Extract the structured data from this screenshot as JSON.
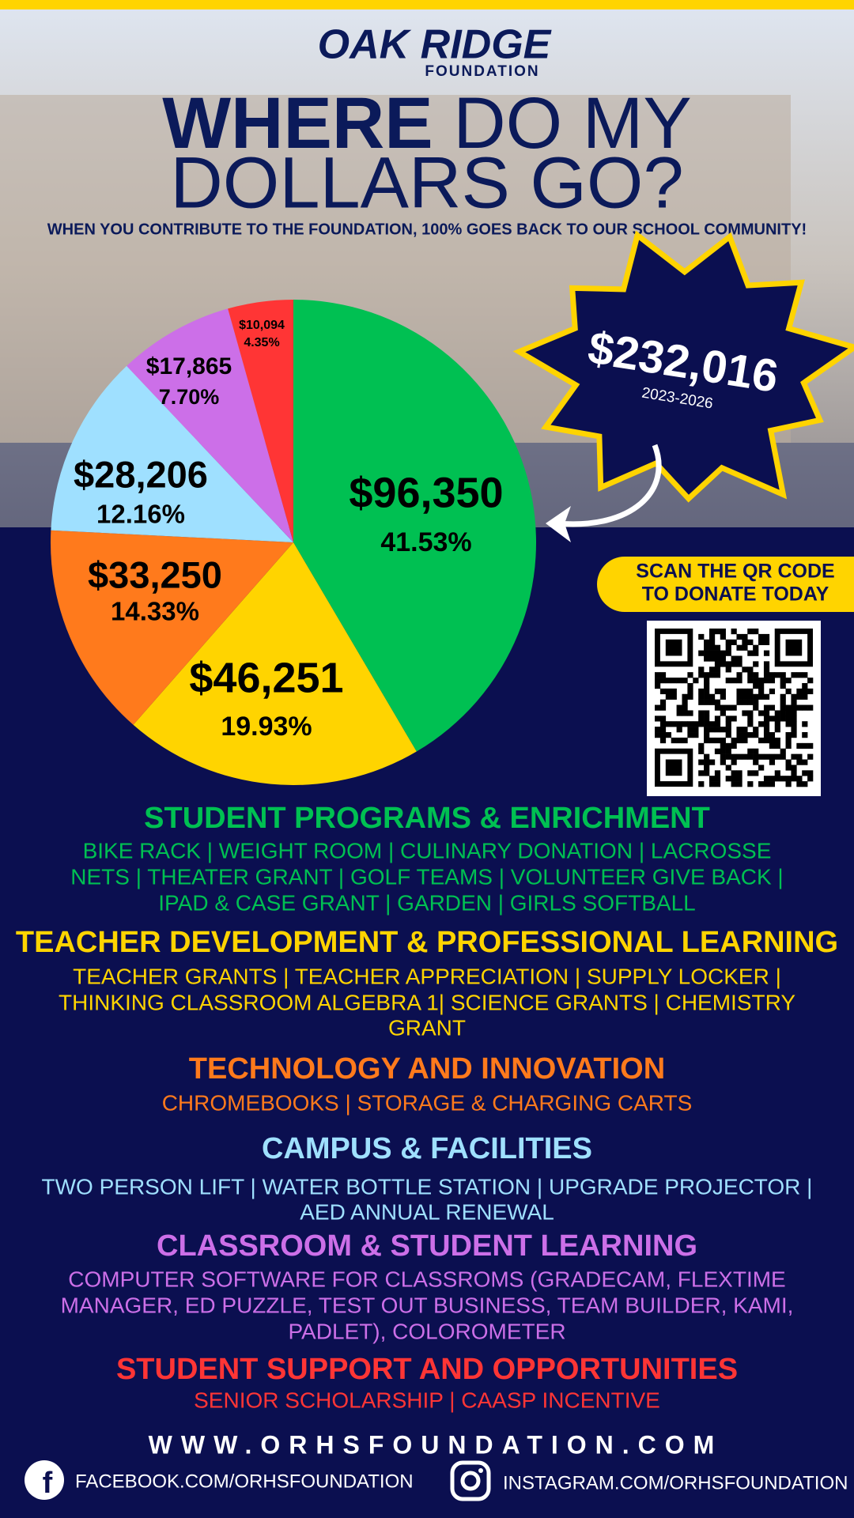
{
  "header": {
    "logo": "OAK RIDGE",
    "logo_sub": "FOUNDATION",
    "title_bold": "WHERE",
    "title_rest": "DO MY",
    "title_line2": "DOLLARS GO?",
    "subtitle": "WHEN YOU CONTRIBUTE TO THE FOUNDATION, 100% GOES BACK TO OUR SCHOOL COMMUNITY!"
  },
  "total": {
    "amount": "$232,016",
    "period": "2023-2026"
  },
  "qr": {
    "lines": [
      "SCAN THE QR CODE",
      "TO DONATE TODAY"
    ]
  },
  "chart_data": {
    "type": "pie",
    "categories": [
      "STUDENT PROGRAMS & ENRICHMENT",
      "TEACHER DEVELOPMENT & PROFESSIONAL LEARNING",
      "TECHNOLOGY AND INNOVATION",
      "CAMPUS & FACILITIES",
      "CLASSROOM & STUDENT LEARNING",
      "STUDENT SUPPORT AND OPPORTUNITIES"
    ],
    "values": [
      96350,
      46251,
      33250,
      28206,
      17865,
      10094
    ],
    "value_labels": [
      "$96,350",
      "$46,251",
      "$33,250",
      "$28,206",
      "$17,865",
      "$10,094"
    ],
    "percentage_labels": [
      "41.53%",
      "19.93%",
      "14.33%",
      "12.16%",
      "7.70%",
      "4.35%"
    ],
    "colors": [
      "#00c052",
      "#ffd400",
      "#ff7a1c",
      "#9fe0ff",
      "#cc6fe8",
      "#ff3535"
    ]
  },
  "details": [
    [
      "BIKE RACK | WEIGHT ROOM | CULINARY DONATION | LACROSSE",
      "NETS | THEATER GRANT | GOLF TEAMS | VOLUNTEER GIVE BACK |",
      "IPAD & CASE GRANT | GARDEN | GIRLS SOFTBALL"
    ],
    [
      "TEACHER GRANTS | TEACHER APPRECIATION | SUPPLY LOCKER |",
      "THINKING CLASSROOM ALGEBRA 1| SCIENCE GRANTS | CHEMISTRY",
      "GRANT"
    ],
    [
      "CHROMEBOOKS | STORAGE & CHARGING CARTS"
    ],
    [
      "TWO PERSON LIFT | WATER BOTTLE STATION | UPGRADE PROJECTOR |",
      "AED ANNUAL RENEWAL"
    ],
    [
      "COMPUTER SOFTWARE FOR CLASSROMS (GRADECAM, FLEXTIME",
      "MANAGER, ED PUZZLE, TEST OUT BUSINESS, TEAM BUILDER, KAMI,",
      "PADLET), COLOROMETER"
    ],
    [
      "SENIOR SCHOLARSHIP | CAASP INCENTIVE"
    ]
  ],
  "footer": {
    "website": "WWW.ORHSFOUNDATION.COM",
    "facebook": "FACEBOOK.COM/ORHSFOUNDATION",
    "instagram": "INSTAGRAM.COM/ORHSFOUNDATION"
  }
}
